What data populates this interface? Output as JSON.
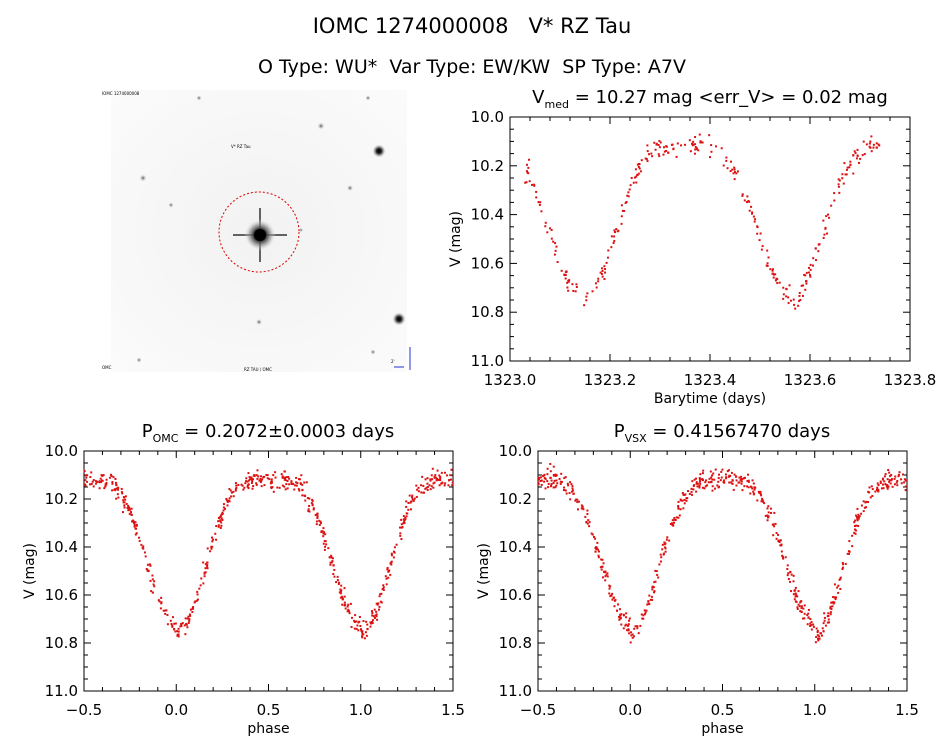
{
  "header": {
    "line1": "IOMC 1274000008   V* RZ Tau",
    "line2": "O Type: WU*  Var Type: EW/KW  SP Type: A7V"
  },
  "image_stamp": {
    "labels": {
      "top_left": "IOMC 1274000008",
      "target": "V* RZ Tau",
      "bottom_left": "OMC",
      "bottom_center": "RZ TAU / OMC",
      "scale": "2'"
    },
    "colors": {
      "circle": "#e00000",
      "label": "#2233cc",
      "target_label": "#e00000"
    }
  },
  "colors": {
    "points": "#dd1111",
    "axes": "#000000",
    "background": "#ffffff"
  },
  "chart_data": [
    {
      "id": "lightcurve",
      "type": "scatter",
      "title": "V",
      "title_sub": "med",
      "title_rest": " = 10.27 mag <err_V> = 0.02 mag",
      "xlabel": "Barytime (days)",
      "ylabel": "V (mag)",
      "xlim": [
        1323.0,
        1323.8
      ],
      "ylim": [
        11.0,
        10.0
      ],
      "xticks": [
        1323.0,
        1323.2,
        1323.4,
        1323.6,
        1323.8
      ],
      "xtick_labels": [
        "1323.0",
        "1323.2",
        "1323.4",
        "1323.6",
        "1323.8"
      ],
      "yticks": [
        10.0,
        10.2,
        10.4,
        10.6,
        10.8,
        11.0
      ],
      "ytick_labels": [
        "10.0",
        "10.2",
        "10.4",
        "10.6",
        "10.8",
        "11.0"
      ],
      "series": [
        {
          "name": "V",
          "x_range": [
            1323.03,
            1323.74
          ],
          "period": 0.4156747,
          "epoch_min": 1323.144,
          "max_mag": 10.12,
          "primary_depth_mag": 10.76,
          "secondary_depth_mag": 10.72,
          "scatter_mag": 0.02
        }
      ]
    },
    {
      "id": "phase_omc",
      "type": "scatter",
      "title": "P",
      "title_sub": "OMC",
      "title_rest": " = 0.2072±0.0003 days",
      "xlabel": "phase",
      "ylabel": "V (mag)",
      "xlim": [
        -0.5,
        1.5
      ],
      "ylim": [
        11.0,
        10.0
      ],
      "xticks": [
        -0.5,
        0.0,
        0.5,
        1.0,
        1.5
      ],
      "xtick_labels": [
        "−0.5",
        "0.0",
        "0.5",
        "1.0",
        "1.5"
      ],
      "yticks": [
        10.0,
        10.2,
        10.4,
        10.6,
        10.8,
        11.0
      ],
      "ytick_labels": [
        "10.0",
        "10.2",
        "10.4",
        "10.6",
        "10.8",
        "11.0"
      ],
      "series": [
        {
          "name": "V folded",
          "x_range": [
            -0.5,
            1.5
          ],
          "cycles_per_phase": 2,
          "max_mag": 10.12,
          "primary_depth_mag": 10.76,
          "secondary_depth_mag": 10.72,
          "scatter_mag": 0.02
        }
      ]
    },
    {
      "id": "phase_vsx",
      "type": "scatter",
      "title": "P",
      "title_sub": "VSX",
      "title_rest": " = 0.41567470 days",
      "xlabel": "phase",
      "ylabel": "V (mag)",
      "xlim": [
        -0.5,
        1.5
      ],
      "ylim": [
        11.0,
        10.0
      ],
      "xticks": [
        -0.5,
        0.0,
        0.5,
        1.0,
        1.5
      ],
      "xtick_labels": [
        "−0.5",
        "0.0",
        "0.5",
        "1.0",
        "1.5"
      ],
      "yticks": [
        10.0,
        10.2,
        10.4,
        10.6,
        10.8,
        11.0
      ],
      "ytick_labels": [
        "10.0",
        "10.2",
        "10.4",
        "10.6",
        "10.8",
        "11.0"
      ],
      "series": [
        {
          "name": "V folded",
          "x_range": [
            -0.5,
            1.5
          ],
          "cycles_per_phase": 2,
          "max_mag": 10.12,
          "primary_depth_mag": 10.76,
          "secondary_depth_mag": 10.72,
          "scatter_mag": 0.02
        }
      ]
    }
  ]
}
